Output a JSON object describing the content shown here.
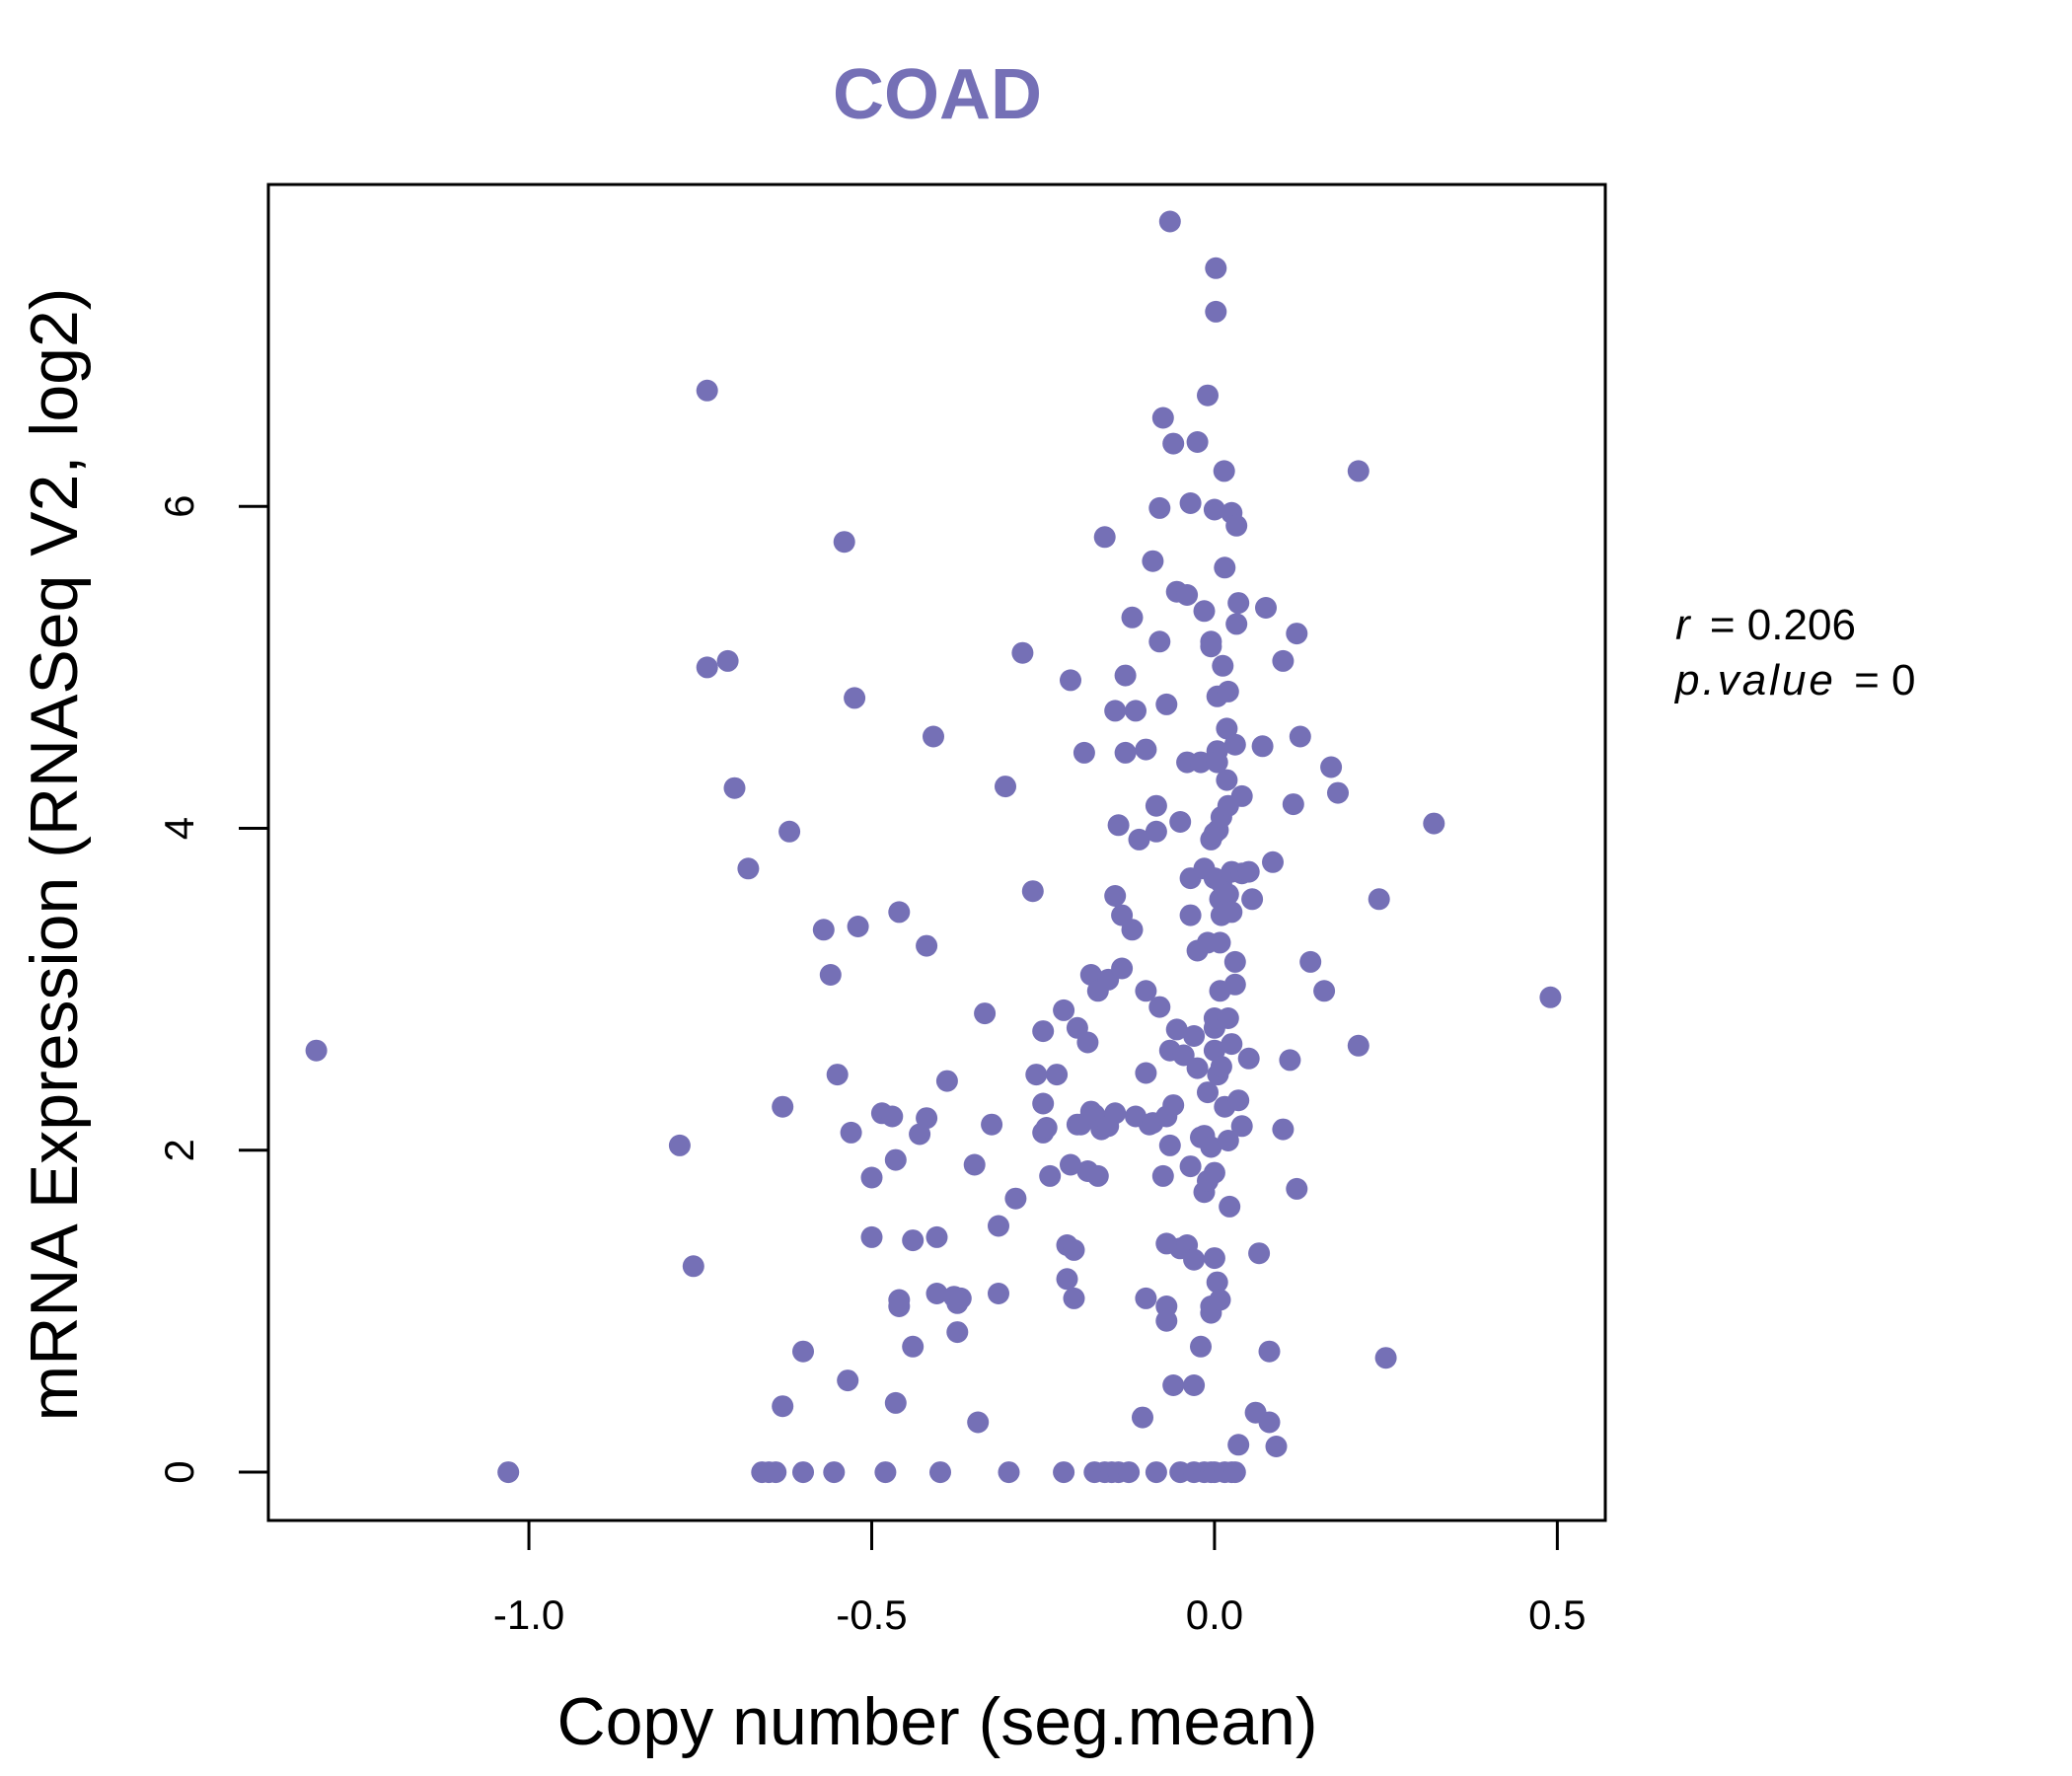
{
  "colors": {
    "point": "#7570b6",
    "title": "#7570b6",
    "axis": "#000000"
  },
  "chart_data": {
    "type": "scatter",
    "title": "COAD",
    "xlabel": "Copy number (seg.mean)",
    "ylabel": "mRNA Expression (RNASeq V2, log2)",
    "xlim": [
      -1.38,
      0.57
    ],
    "ylim": [
      -0.3,
      8.0
    ],
    "xticks": [
      -1.0,
      -0.5,
      0.0,
      0.5
    ],
    "xtick_labels": [
      "-1.0",
      "-0.5",
      "0.0",
      "0.5"
    ],
    "yticks": [
      0,
      2,
      4,
      6
    ],
    "ytick_labels": [
      "0",
      "2",
      "4",
      "6"
    ],
    "r_label": "r",
    "r_value": "= 0.206",
    "p_label": "p.value",
    "p_value": "= 0",
    "points": [
      [
        -1.31,
        2.62
      ],
      [
        -1.03,
        0.0
      ],
      [
        -0.78,
        2.03
      ],
      [
        -0.76,
        1.28
      ],
      [
        -0.74,
        6.72
      ],
      [
        -0.74,
        5.0
      ],
      [
        -0.71,
        5.04
      ],
      [
        -0.7,
        4.25
      ],
      [
        -0.68,
        3.75
      ],
      [
        -0.66,
        0.0
      ],
      [
        -0.65,
        0.0
      ],
      [
        -0.64,
        0.0
      ],
      [
        -0.63,
        0.41
      ],
      [
        -0.63,
        2.27
      ],
      [
        -0.62,
        3.98
      ],
      [
        -0.6,
        0.75
      ],
      [
        -0.6,
        0.0
      ],
      [
        -0.57,
        3.37
      ],
      [
        -0.56,
        3.09
      ],
      [
        -0.555,
        0.0
      ],
      [
        -0.55,
        2.47
      ],
      [
        -0.54,
        5.78
      ],
      [
        -0.535,
        0.57
      ],
      [
        -0.53,
        2.11
      ],
      [
        -0.525,
        4.81
      ],
      [
        -0.52,
        3.39
      ],
      [
        -0.5,
        1.83
      ],
      [
        -0.5,
        1.46
      ],
      [
        -0.485,
        2.23
      ],
      [
        -0.48,
        0.0
      ],
      [
        -0.47,
        2.21
      ],
      [
        -0.465,
        0.43
      ],
      [
        -0.465,
        1.94
      ],
      [
        -0.46,
        1.07
      ],
      [
        -0.46,
        1.03
      ],
      [
        -0.46,
        3.48
      ],
      [
        -0.44,
        1.44
      ],
      [
        -0.44,
        0.78
      ],
      [
        -0.43,
        2.1
      ],
      [
        -0.42,
        2.2
      ],
      [
        -0.42,
        3.27
      ],
      [
        -0.41,
        4.57
      ],
      [
        -0.405,
        1.46
      ],
      [
        -0.405,
        1.11
      ],
      [
        -0.4,
        0.0
      ],
      [
        -0.39,
        2.43
      ],
      [
        -0.38,
        1.09
      ],
      [
        -0.375,
        1.05
      ],
      [
        -0.375,
        0.87
      ],
      [
        -0.37,
        1.08
      ],
      [
        -0.35,
        1.91
      ],
      [
        -0.345,
        0.31
      ],
      [
        -0.335,
        2.85
      ],
      [
        -0.325,
        2.16
      ],
      [
        -0.315,
        1.53
      ],
      [
        -0.315,
        1.11
      ],
      [
        -0.305,
        4.26
      ],
      [
        -0.3,
        0.0
      ],
      [
        -0.29,
        1.7
      ],
      [
        -0.28,
        5.09
      ],
      [
        -0.265,
        3.61
      ],
      [
        -0.26,
        2.47
      ],
      [
        -0.25,
        2.74
      ],
      [
        -0.25,
        2.11
      ],
      [
        -0.25,
        2.29
      ],
      [
        -0.245,
        2.14
      ],
      [
        -0.24,
        1.84
      ],
      [
        -0.23,
        2.47
      ],
      [
        -0.22,
        2.87
      ],
      [
        -0.22,
        0.0
      ],
      [
        -0.215,
        1.41
      ],
      [
        -0.215,
        1.2
      ],
      [
        -0.21,
        4.92
      ],
      [
        -0.21,
        1.91
      ],
      [
        -0.205,
        1.38
      ],
      [
        -0.205,
        1.08
      ],
      [
        -0.2,
        2.76
      ],
      [
        -0.2,
        2.16
      ],
      [
        -0.195,
        2.16
      ],
      [
        -0.19,
        4.47
      ],
      [
        -0.185,
        1.87
      ],
      [
        -0.185,
        2.67
      ],
      [
        -0.18,
        2.24
      ],
      [
        -0.18,
        3.09
      ],
      [
        -0.175,
        2.22
      ],
      [
        -0.175,
        0.0
      ],
      [
        -0.17,
        1.84
      ],
      [
        -0.17,
        2.99
      ],
      [
        -0.165,
        2.13
      ],
      [
        -0.16,
        5.81
      ],
      [
        -0.16,
        0.0
      ],
      [
        -0.155,
        2.15
      ],
      [
        -0.155,
        3.06
      ],
      [
        -0.15,
        0.0
      ],
      [
        -0.145,
        2.23
      ],
      [
        -0.145,
        3.58
      ],
      [
        -0.145,
        4.73
      ],
      [
        -0.14,
        4.02
      ],
      [
        -0.14,
        0.0
      ],
      [
        -0.135,
        3.13
      ],
      [
        -0.135,
        3.46
      ],
      [
        -0.13,
        4.95
      ],
      [
        -0.13,
        4.47
      ],
      [
        -0.125,
        0.0
      ],
      [
        -0.12,
        3.37
      ],
      [
        -0.12,
        5.31
      ],
      [
        -0.115,
        2.21
      ],
      [
        -0.115,
        4.73
      ],
      [
        -0.11,
        3.93
      ],
      [
        -0.105,
        0.34
      ],
      [
        -0.1,
        4.49
      ],
      [
        -0.1,
        2.48
      ],
      [
        -0.1,
        2.99
      ],
      [
        -0.1,
        1.08
      ],
      [
        -0.095,
        2.16
      ],
      [
        -0.09,
        5.66
      ],
      [
        -0.09,
        2.17
      ],
      [
        -0.085,
        4.14
      ],
      [
        -0.085,
        3.98
      ],
      [
        -0.085,
        0.0
      ],
      [
        -0.08,
        2.89
      ],
      [
        -0.08,
        5.99
      ],
      [
        -0.08,
        5.16
      ],
      [
        -0.075,
        6.55
      ],
      [
        -0.075,
        1.84
      ],
      [
        -0.07,
        2.21
      ],
      [
        -0.07,
        4.77
      ],
      [
        -0.07,
        1.42
      ],
      [
        -0.07,
        1.03
      ],
      [
        -0.07,
        0.94
      ],
      [
        -0.065,
        7.77
      ],
      [
        -0.065,
        2.03
      ],
      [
        -0.065,
        2.62
      ],
      [
        -0.06,
        6.39
      ],
      [
        -0.06,
        2.28
      ],
      [
        -0.06,
        0.54
      ],
      [
        -0.055,
        5.47
      ],
      [
        -0.055,
        2.75
      ],
      [
        -0.05,
        4.04
      ],
      [
        -0.05,
        1.39
      ],
      [
        -0.05,
        0.0
      ],
      [
        -0.045,
        2.59
      ],
      [
        -0.04,
        4.41
      ],
      [
        -0.04,
        5.45
      ],
      [
        -0.04,
        1.41
      ],
      [
        -0.035,
        3.46
      ],
      [
        -0.035,
        3.69
      ],
      [
        -0.035,
        6.02
      ],
      [
        -0.035,
        1.9
      ],
      [
        -0.03,
        1.32
      ],
      [
        -0.03,
        2.71
      ],
      [
        -0.03,
        0.54
      ],
      [
        -0.03,
        0.0
      ],
      [
        -0.025,
        2.51
      ],
      [
        -0.025,
        6.4
      ],
      [
        -0.025,
        3.24
      ],
      [
        -0.02,
        4.41
      ],
      [
        -0.02,
        2.08
      ],
      [
        -0.02,
        0.78
      ],
      [
        -0.015,
        3.75
      ],
      [
        -0.015,
        5.35
      ],
      [
        -0.015,
        1.74
      ],
      [
        -0.015,
        2.09
      ],
      [
        -0.015,
        0.0
      ],
      [
        -0.01,
        6.69
      ],
      [
        -0.01,
        3.29
      ],
      [
        -0.01,
        1.81
      ],
      [
        -0.01,
        2.36
      ],
      [
        -0.005,
        5.16
      ],
      [
        -0.005,
        5.13
      ],
      [
        -0.005,
        3.93
      ],
      [
        -0.005,
        2.02
      ],
      [
        -0.005,
        1.03
      ],
      [
        -0.005,
        0.99
      ],
      [
        -0.005,
        0.0
      ],
      [
        0.0,
        2.62
      ],
      [
        0.0,
        2.76
      ],
      [
        0.0,
        3.69
      ],
      [
        0.0,
        3.97
      ],
      [
        0.0,
        5.98
      ],
      [
        0.0,
        2.82
      ],
      [
        0.0,
        1.86
      ],
      [
        0.0,
        1.33
      ],
      [
        0.0,
        0.0
      ],
      [
        0.002,
        7.48
      ],
      [
        0.002,
        7.21
      ],
      [
        0.004,
        4.82
      ],
      [
        0.004,
        4.48
      ],
      [
        0.004,
        4.41
      ],
      [
        0.004,
        1.18
      ],
      [
        0.005,
        3.99
      ],
      [
        0.005,
        2.47
      ],
      [
        0.008,
        3.56
      ],
      [
        0.008,
        3.29
      ],
      [
        0.008,
        2.99
      ],
      [
        0.008,
        1.07
      ],
      [
        0.01,
        4.07
      ],
      [
        0.01,
        3.66
      ],
      [
        0.01,
        3.46
      ],
      [
        0.01,
        2.52
      ],
      [
        0.012,
        5.01
      ],
      [
        0.014,
        6.22
      ],
      [
        0.015,
        5.62
      ],
      [
        0.015,
        2.27
      ],
      [
        0.015,
        0.0
      ],
      [
        0.018,
        4.62
      ],
      [
        0.018,
        4.3
      ],
      [
        0.02,
        4.85
      ],
      [
        0.02,
        4.14
      ],
      [
        0.02,
        3.59
      ],
      [
        0.02,
        2.82
      ],
      [
        0.02,
        2.06
      ],
      [
        0.022,
        1.65
      ],
      [
        0.025,
        5.96
      ],
      [
        0.025,
        3.73
      ],
      [
        0.025,
        3.48
      ],
      [
        0.025,
        2.66
      ],
      [
        0.025,
        0.0
      ],
      [
        0.03,
        4.52
      ],
      [
        0.03,
        3.17
      ],
      [
        0.03,
        3.03
      ],
      [
        0.03,
        0.0
      ],
      [
        0.032,
        5.88
      ],
      [
        0.032,
        5.27
      ],
      [
        0.035,
        5.4
      ],
      [
        0.035,
        0.17
      ],
      [
        0.035,
        2.31
      ],
      [
        0.04,
        2.15
      ],
      [
        0.04,
        4.2
      ],
      [
        0.04,
        3.72
      ],
      [
        0.05,
        3.73
      ],
      [
        0.05,
        2.57
      ],
      [
        0.055,
        3.56
      ],
      [
        0.06,
        0.37
      ],
      [
        0.065,
        1.36
      ],
      [
        0.07,
        4.51
      ],
      [
        0.075,
        5.37
      ],
      [
        0.08,
        0.75
      ],
      [
        0.08,
        0.31
      ],
      [
        0.085,
        3.79
      ],
      [
        0.09,
        0.16
      ],
      [
        0.1,
        5.04
      ],
      [
        0.1,
        2.13
      ],
      [
        0.11,
        2.56
      ],
      [
        0.115,
        4.15
      ],
      [
        0.12,
        5.21
      ],
      [
        0.12,
        1.76
      ],
      [
        0.125,
        4.57
      ],
      [
        0.14,
        3.17
      ],
      [
        0.16,
        2.99
      ],
      [
        0.17,
        4.38
      ],
      [
        0.18,
        4.22
      ],
      [
        0.21,
        6.22
      ],
      [
        0.21,
        2.65
      ],
      [
        0.24,
        3.56
      ],
      [
        0.25,
        0.71
      ],
      [
        0.32,
        4.03
      ],
      [
        0.49,
        2.95
      ]
    ]
  }
}
